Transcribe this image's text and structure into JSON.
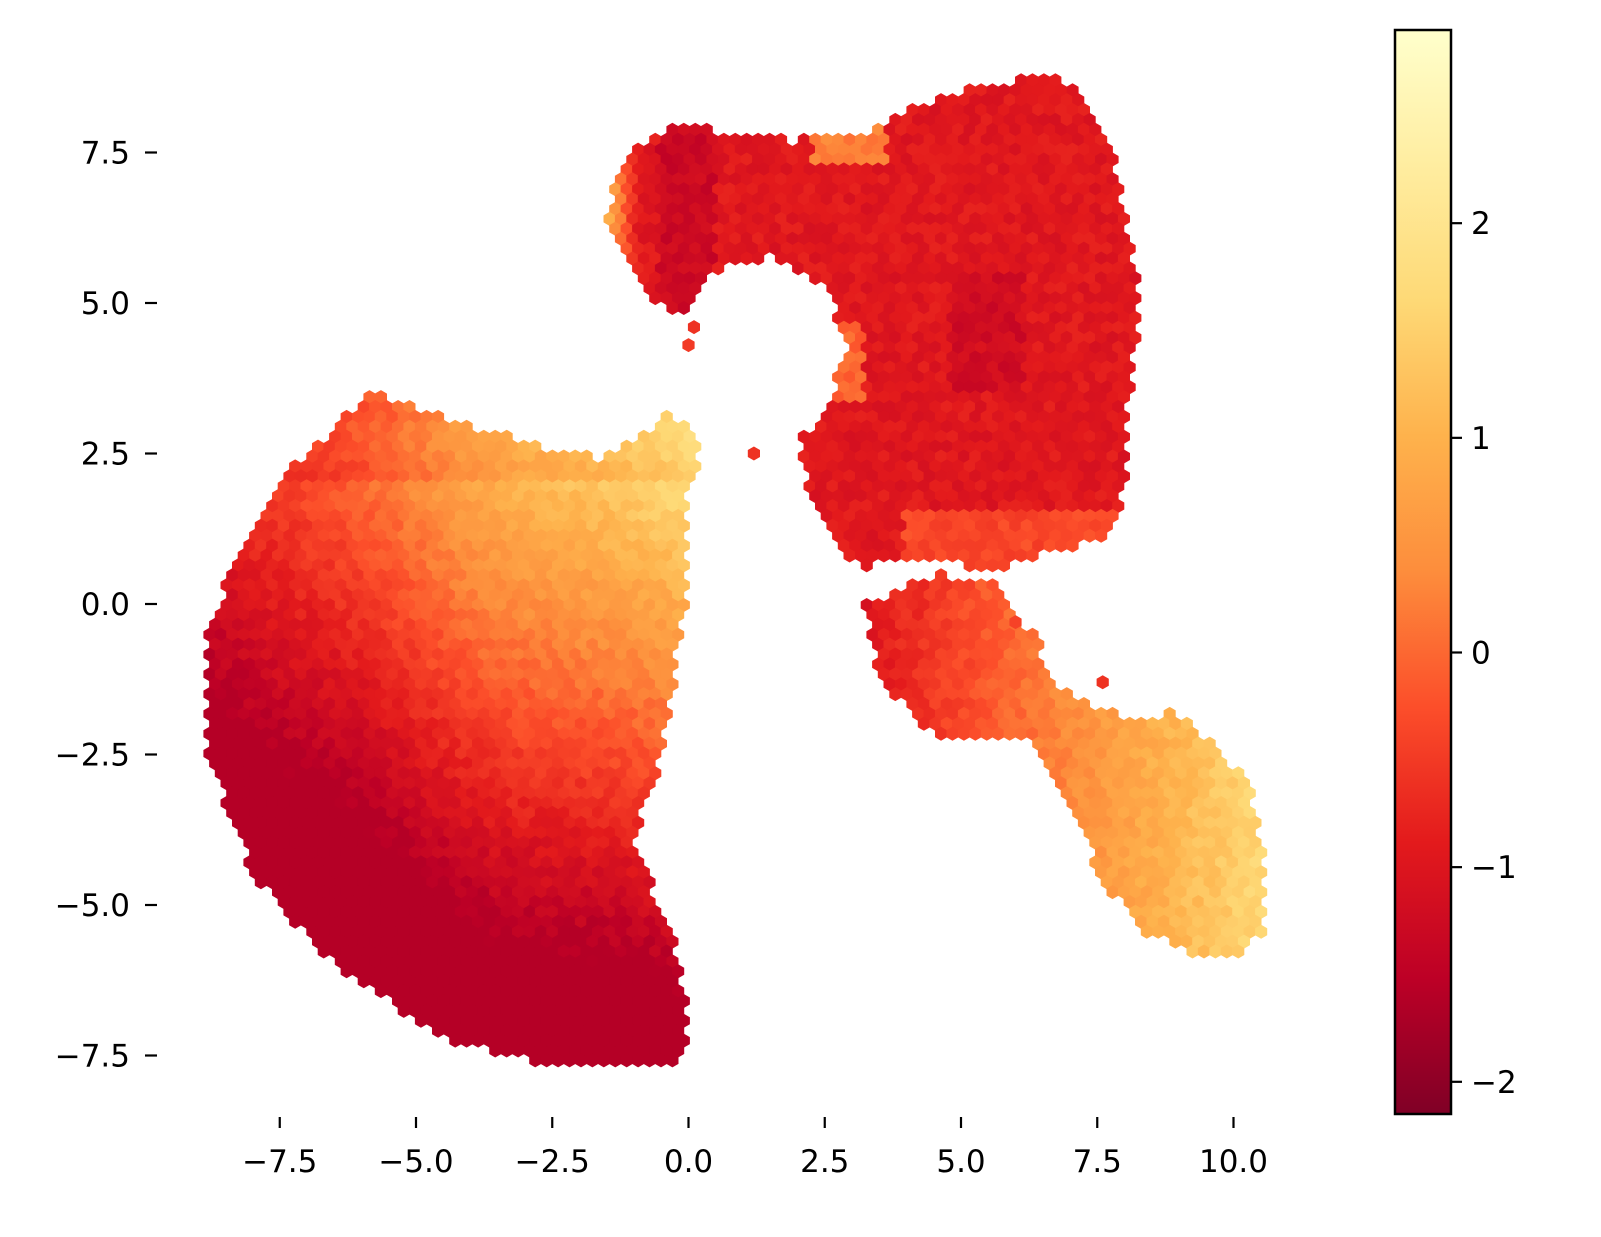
{
  "chart_data": {
    "type": "hexbin",
    "title": "",
    "xlabel": "",
    "ylabel": "",
    "xlim": [
      -9.0,
      11.0
    ],
    "ylim": [
      -8.2,
      8.7
    ],
    "x_ticks": [
      -7.5,
      -5.0,
      -2.5,
      0.0,
      2.5,
      5.0,
      7.5,
      10.0
    ],
    "x_tick_labels": [
      "−7.5",
      "−5.0",
      "−2.5",
      "0.0",
      "2.5",
      "5.0",
      "7.5",
      "10.0"
    ],
    "y_ticks": [
      7.5,
      5.0,
      2.5,
      0.0,
      -2.5,
      -5.0,
      -7.5
    ],
    "y_tick_labels": [
      "7.5",
      "5.0",
      "2.5",
      "0.0",
      "−2.5",
      "−5.0",
      "−7.5"
    ],
    "colormap": "YlOrRd_r",
    "colormap_stops": [
      "#800026",
      "#bd0026",
      "#e31a1c",
      "#fc4e2a",
      "#fd8d3c",
      "#feb24c",
      "#fed976",
      "#ffeda0",
      "#ffffcc"
    ],
    "colorbar": {
      "range": [
        -2.15,
        2.9
      ],
      "ticks": [
        2,
        1,
        0,
        -1,
        -2
      ],
      "tick_labels": [
        "2",
        "1",
        "0",
        "−1",
        "−2"
      ],
      "placement": "right"
    },
    "regions": [
      {
        "name": "left-fan",
        "color_value_range": [
          -1.5,
          2.6
        ],
        "outline": [
          [
            -5.8,
            3.5
          ],
          [
            -4.5,
            3.1
          ],
          [
            -3.0,
            2.7
          ],
          [
            -1.6,
            2.4
          ],
          [
            -1.0,
            2.7
          ],
          [
            -0.4,
            3.2
          ],
          [
            0.3,
            2.7
          ],
          [
            0.0,
            1.8
          ],
          [
            -0.05,
            0.0
          ],
          [
            -0.5,
            -2.5
          ],
          [
            -1.0,
            -4.0
          ],
          [
            -0.3,
            -5.5
          ],
          [
            0.0,
            -7.0
          ],
          [
            -0.2,
            -7.7
          ],
          [
            -2.5,
            -7.7
          ],
          [
            -4.5,
            -7.2
          ],
          [
            -6.5,
            -6.0
          ],
          [
            -8.0,
            -4.5
          ],
          [
            -8.8,
            -2.5
          ],
          [
            -8.8,
            -0.5
          ],
          [
            -8.3,
            0.8
          ],
          [
            -7.4,
            2.2
          ]
        ]
      },
      {
        "name": "top-lobe",
        "color_value_range": [
          -1.6,
          2.4
        ],
        "outline": [
          [
            -1.6,
            6.4
          ],
          [
            -1.0,
            7.6
          ],
          [
            -0.2,
            8.0
          ],
          [
            1.0,
            7.8
          ],
          [
            2.0,
            7.7
          ],
          [
            3.5,
            7.9
          ],
          [
            4.2,
            8.3
          ],
          [
            5.3,
            8.6
          ],
          [
            6.5,
            8.8
          ],
          [
            7.2,
            8.6
          ],
          [
            7.7,
            7.8
          ],
          [
            8.0,
            6.5
          ],
          [
            8.3,
            5.0
          ],
          [
            8.1,
            3.5
          ],
          [
            8.0,
            2.0
          ],
          [
            7.8,
            1.2
          ],
          [
            6.5,
            0.8
          ],
          [
            5.5,
            0.5
          ],
          [
            4.5,
            0.8
          ],
          [
            3.2,
            0.6
          ],
          [
            2.6,
            1.0
          ],
          [
            2.2,
            2.0
          ],
          [
            2.0,
            2.7
          ],
          [
            2.5,
            3.2
          ],
          [
            2.9,
            4.2
          ],
          [
            2.6,
            5.2
          ],
          [
            1.5,
            5.8
          ],
          [
            0.5,
            5.5
          ],
          [
            0.0,
            4.8
          ],
          [
            -0.7,
            5.0
          ],
          [
            -1.3,
            5.9
          ]
        ]
      },
      {
        "name": "lower-right-arm",
        "color_value_range": [
          -1.6,
          2.1
        ],
        "outline": [
          [
            3.2,
            0.0
          ],
          [
            4.5,
            0.5
          ],
          [
            5.6,
            0.4
          ],
          [
            6.4,
            -0.6
          ],
          [
            6.8,
            -1.4
          ],
          [
            8.0,
            -1.9
          ],
          [
            9.0,
            -1.8
          ],
          [
            9.8,
            -2.5
          ],
          [
            10.3,
            -3.0
          ],
          [
            10.6,
            -4.5
          ],
          [
            10.6,
            -5.4
          ],
          [
            10.2,
            -5.8
          ],
          [
            9.2,
            -5.8
          ],
          [
            8.3,
            -5.4
          ],
          [
            7.6,
            -4.6
          ],
          [
            7.1,
            -3.5
          ],
          [
            6.2,
            -2.3
          ],
          [
            4.5,
            -2.2
          ],
          [
            3.5,
            -1.3
          ]
        ]
      }
    ],
    "isolated_points": [
      {
        "x": 0.1,
        "y": 4.6,
        "value": -0.6
      },
      {
        "x": 0.0,
        "y": 4.3,
        "value": -0.5
      },
      {
        "x": 1.2,
        "y": 2.5,
        "value": -0.6
      },
      {
        "x": 7.6,
        "y": -1.3,
        "value": -0.6
      },
      {
        "x": 6.0,
        "y": -0.3,
        "value": -0.4
      }
    ]
  }
}
